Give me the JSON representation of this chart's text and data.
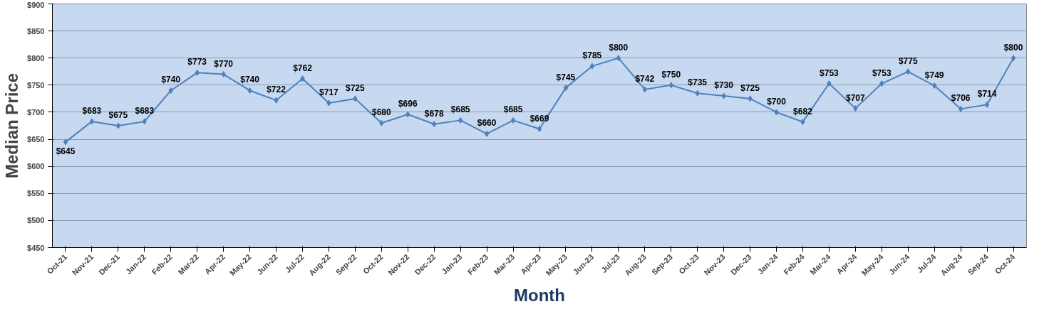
{
  "chart_data": {
    "type": "line",
    "xlabel": "Month",
    "ylabel": "Median Price",
    "categories": [
      "Oct-21",
      "Nov-21",
      "Dec-21",
      "Jan-22",
      "Feb-22",
      "Mar-22",
      "Apr-22",
      "May-22",
      "Jun-22",
      "Jul-22",
      "Aug-22",
      "Sep-22",
      "Oct-22",
      "Nov-22",
      "Dec-22",
      "Jan-23",
      "Feb-23",
      "Mar-23",
      "Apr-23",
      "May-23",
      "Jun-23",
      "Jul-23",
      "Aug-23",
      "Sep-23",
      "Oct-23",
      "Nov-23",
      "Dec-23",
      "Jan-24",
      "Feb-24",
      "Mar-24",
      "Apr-24",
      "May-24",
      "Jun-24",
      "Jul-24",
      "Aug-24",
      "Sep-24",
      "Oct-24"
    ],
    "series": [
      {
        "color": "#4f81bd",
        "values": [
          645,
          683,
          675,
          683,
          740,
          773,
          770,
          740,
          722,
          762,
          717,
          725,
          680,
          696,
          678,
          685,
          660,
          685,
          669,
          745,
          785,
          800,
          742,
          750,
          735,
          730,
          725,
          700,
          682,
          753,
          707,
          753,
          775,
          749,
          706,
          714,
          800
        ],
        "value_labels": [
          "$645",
          "$683",
          "$675",
          "$683",
          "$740",
          "$773",
          "$770",
          "$740",
          "$722",
          "$762",
          "$717",
          "$725",
          "$680",
          "$696",
          "$678",
          "$685",
          "$660",
          "$685",
          "$669",
          "$745",
          "$785",
          "$800",
          "$742",
          "$750",
          "$735",
          "$730",
          "$725",
          "$700",
          "$682",
          "$753",
          "$707",
          "$753",
          "$775",
          "$749",
          "$706",
          "$714",
          "$800"
        ]
      }
    ],
    "ylim": [
      450,
      900
    ],
    "yticks": [
      {
        "value": 450,
        "label": "$450"
      },
      {
        "value": 500,
        "label": "$500"
      },
      {
        "value": 550,
        "label": "$550"
      },
      {
        "value": 600,
        "label": "$600"
      },
      {
        "value": 650,
        "label": "$650"
      },
      {
        "value": 700,
        "label": "$700"
      },
      {
        "value": 750,
        "label": "$750"
      },
      {
        "value": 800,
        "label": "$800"
      },
      {
        "value": 850,
        "label": "$850"
      },
      {
        "value": 900,
        "label": "$900"
      }
    ],
    "grid": "y",
    "marker": "diamond",
    "line_style": "solid"
  }
}
